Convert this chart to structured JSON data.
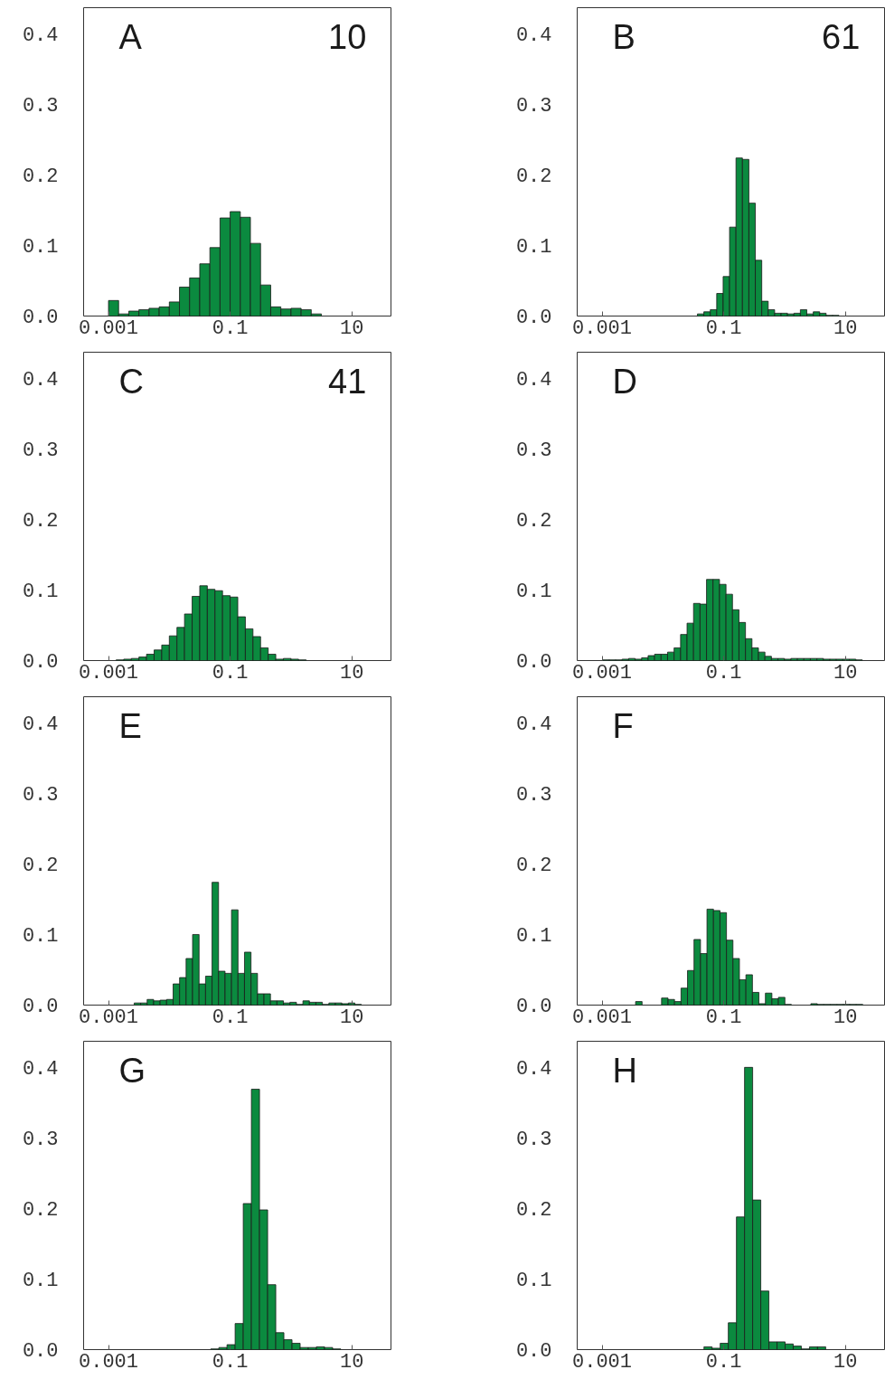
{
  "chart_data": [
    {
      "type": "histogram",
      "annotations": [
        "A",
        "10"
      ],
      "color": "#0b8a3f",
      "log": "x",
      "grid": false,
      "xlim": [
        0.00039,
        44
      ],
      "xticks": [
        0.001,
        0.1,
        10
      ],
      "ylim": [
        0,
        0.437
      ],
      "yticks": [
        {
          "value": 0,
          "label": "0.0"
        },
        {
          "value": 0.1,
          "label": "0.1"
        },
        {
          "value": 0.2,
          "label": "0.2"
        },
        {
          "value": 0.3,
          "label": "0.3"
        },
        {
          "value": 0.4,
          "label": "0.4"
        }
      ],
      "bins": [
        0.001,
        0.001468,
        0.002154,
        0.003162,
        0.004642,
        0.006813,
        0.01,
        0.01468,
        0.02154,
        0.03162,
        0.04642,
        0.06813,
        0.1,
        0.1468,
        0.2154,
        0.3162,
        0.4642,
        0.6813,
        1.0,
        1.468,
        2.154,
        3.162
      ],
      "values": [
        0.022,
        0.003,
        0.007,
        0.009,
        0.011,
        0.013,
        0.02,
        0.041,
        0.054,
        0.074,
        0.097,
        0.139,
        0.148,
        0.14,
        0.103,
        0.044,
        0.013,
        0.01,
        0.011,
        0.009,
        0.003
      ]
    },
    {
      "type": "histogram",
      "annotations": [
        "B",
        "61"
      ],
      "color": "#0b8a3f",
      "log": "x",
      "grid": false,
      "xlim": [
        0.00039,
        44
      ],
      "xticks": [
        0.001,
        0.1,
        10
      ],
      "ylim": [
        0,
        0.437
      ],
      "yticks": [
        {
          "value": 0,
          "label": "0.0"
        },
        {
          "value": 0.1,
          "label": "0.1"
        },
        {
          "value": 0.2,
          "label": "0.2"
        },
        {
          "value": 0.3,
          "label": "0.3"
        },
        {
          "value": 0.4,
          "label": "0.4"
        }
      ],
      "bins": [
        0.0369,
        0.04708,
        0.06006,
        0.07663,
        0.09777,
        0.1247,
        0.1591,
        0.203,
        0.2591,
        0.3305,
        0.4217,
        0.538,
        0.6864,
        0.8758,
        1.117,
        1.426,
        1.819,
        2.321,
        2.961,
        3.777,
        4.819,
        6.149,
        7.845
      ],
      "values": [
        0.003,
        0.006,
        0.009,
        0.032,
        0.056,
        0.126,
        0.224,
        0.222,
        0.16,
        0.079,
        0.021,
        0.009,
        0.004,
        0.004,
        0.003,
        0.004,
        0.009,
        0.003,
        0.006,
        0.004,
        0.001,
        0.001
      ]
    },
    {
      "type": "histogram",
      "annotations": [
        "C",
        "41"
      ],
      "color": "#0b8a3f",
      "log": "x",
      "grid": false,
      "xlim": [
        0.00039,
        44
      ],
      "xticks": [
        0.001,
        0.1,
        10
      ],
      "ylim": [
        0,
        0.437
      ],
      "yticks": [
        {
          "value": 0,
          "label": "0.0"
        },
        {
          "value": 0.1,
          "label": "0.1"
        },
        {
          "value": 0.2,
          "label": "0.2"
        },
        {
          "value": 0.3,
          "label": "0.3"
        },
        {
          "value": 0.4,
          "label": "0.4"
        }
      ],
      "bins": [
        0.001334,
        0.001778,
        0.002371,
        0.003162,
        0.004217,
        0.005623,
        0.007499,
        0.01,
        0.01334,
        0.01778,
        0.02371,
        0.03162,
        0.04217,
        0.05623,
        0.07499,
        0.1,
        0.1334,
        0.1778,
        0.2371,
        0.3162,
        0.4217,
        0.5623,
        0.7499,
        1.0,
        1.334,
        1.778
      ],
      "values": [
        0.001,
        0.002,
        0.003,
        0.005,
        0.009,
        0.015,
        0.022,
        0.035,
        0.047,
        0.066,
        0.091,
        0.106,
        0.101,
        0.099,
        0.092,
        0.09,
        0.062,
        0.045,
        0.034,
        0.018,
        0.009,
        0.002,
        0.003,
        0.002,
        0.001
      ]
    },
    {
      "type": "histogram",
      "annotations": [
        "D"
      ],
      "color": "#0b8a3f",
      "log": "x",
      "grid": false,
      "xlim": [
        0.00039,
        44
      ],
      "xticks": [
        0.001,
        0.1,
        10
      ],
      "ylim": [
        0,
        0.437
      ],
      "yticks": [
        {
          "value": 0,
          "label": "0.0"
        },
        {
          "value": 0.1,
          "label": "0.1"
        },
        {
          "value": 0.2,
          "label": "0.2"
        },
        {
          "value": 0.3,
          "label": "0.3"
        },
        {
          "value": 0.4,
          "label": "0.4"
        }
      ],
      "bins": [
        0.001023,
        0.001308,
        0.001673,
        0.002138,
        0.002734,
        0.003495,
        0.004469,
        0.005713,
        0.007305,
        0.009339,
        0.01194,
        0.01527,
        0.01952,
        0.02495,
        0.0319,
        0.04078,
        0.05214,
        0.06667,
        0.08523,
        0.109,
        0.1393,
        0.1781,
        0.2277,
        0.2911,
        0.3722,
        0.4759,
        0.6084,
        0.7779,
        0.9945,
        1.271,
        1.626,
        2.078,
        2.657,
        3.397,
        4.343,
        5.553,
        7.099,
        9.076,
        11.6,
        14.84,
        18.97
      ],
      "values": [
        0.001,
        0.001,
        0.001,
        0.002,
        0.003,
        0.002,
        0.004,
        0.007,
        0.009,
        0.009,
        0.012,
        0.018,
        0.037,
        0.053,
        0.081,
        0.08,
        0.115,
        0.115,
        0.108,
        0.094,
        0.072,
        0.054,
        0.031,
        0.018,
        0.012,
        0.006,
        0.003,
        0.003,
        0.002,
        0.003,
        0.003,
        0.003,
        0.003,
        0.003,
        0.002,
        0.002,
        0.002,
        0.002,
        0.002,
        0.001
      ]
    },
    {
      "type": "histogram",
      "annotations": [
        "E"
      ],
      "color": "#0b8a3f",
      "log": "x",
      "grid": false,
      "xlim": [
        0.00039,
        44
      ],
      "xticks": [
        0.001,
        0.1,
        10
      ],
      "ylim": [
        0,
        0.437
      ],
      "yticks": [
        {
          "value": 0,
          "label": "0.0"
        },
        {
          "value": 0.1,
          "label": "0.1"
        },
        {
          "value": 0.2,
          "label": "0.2"
        },
        {
          "value": 0.3,
          "label": "0.3"
        },
        {
          "value": 0.4,
          "label": "0.4"
        }
      ],
      "bins": [
        0.002642,
        0.003378,
        0.004319,
        0.005522,
        0.00706,
        0.009026,
        0.01154,
        0.01475,
        0.01886,
        0.02412,
        0.03083,
        0.03942,
        0.0504,
        0.06443,
        0.08238,
        0.1053,
        0.1346,
        0.1721,
        0.2201,
        0.2814,
        0.3597,
        0.4599,
        0.588,
        0.7518,
        0.9612,
        1.229,
        1.571,
        2.009,
        2.568,
        3.283,
        4.198,
        5.367,
        6.861,
        8.772,
        11.22,
        14.34
      ],
      "values": [
        0.003,
        0.003,
        0.008,
        0.006,
        0.007,
        0.008,
        0.03,
        0.039,
        0.066,
        0.1,
        0.03,
        0.041,
        0.174,
        0.048,
        0.045,
        0.135,
        0.045,
        0.075,
        0.045,
        0.016,
        0.016,
        0.006,
        0.006,
        0.003,
        0.004,
        0.001,
        0.006,
        0.004,
        0.004,
        0.001,
        0.003,
        0.003,
        0.002,
        0.003,
        0.001
      ]
    },
    {
      "type": "histogram",
      "annotations": [
        "F"
      ],
      "color": "#0b8a3f",
      "log": "x",
      "grid": false,
      "xlim": [
        0.00039,
        44
      ],
      "xticks": [
        0.001,
        0.1,
        10
      ],
      "ylim": [
        0,
        0.437
      ],
      "yticks": [
        {
          "value": 0,
          "label": "0.0"
        },
        {
          "value": 0.1,
          "label": "0.1"
        },
        {
          "value": 0.2,
          "label": "0.2"
        },
        {
          "value": 0.3,
          "label": "0.3"
        },
        {
          "value": 0.4,
          "label": "0.4"
        }
      ],
      "bins": [
        0.003556,
        0.004547,
        0.005813,
        0.007432,
        0.009502,
        0.01215,
        0.01553,
        0.01986,
        0.02539,
        0.03246,
        0.0415,
        0.05305,
        0.06783,
        0.08672,
        0.1109,
        0.1417,
        0.1812,
        0.2317,
        0.2962,
        0.3787,
        0.4842,
        0.619,
        0.7914,
        1.012,
        1.294,
        1.654,
        2.114,
        2.703,
        3.456,
        4.419,
        5.649,
        7.223,
        9.234,
        11.81,
        15.09,
        19.3
      ],
      "values": [
        0.005,
        null,
        null,
        null,
        0.01,
        0.008,
        0.005,
        0.024,
        0.049,
        0.093,
        0.073,
        0.136,
        0.134,
        0.131,
        0.092,
        0.066,
        0.036,
        0.043,
        0.018,
        0.002,
        0.017,
        0.009,
        0.011,
        0.001,
        null,
        null,
        null,
        0.002,
        0.001,
        0.001,
        0.001,
        0.001,
        0.001,
        0.001,
        0.001
      ]
    },
    {
      "type": "histogram",
      "annotations": [
        "G"
      ],
      "color": "#0b8a3f",
      "log": "x",
      "grid": false,
      "xlim": [
        0.00039,
        44
      ],
      "xticks": [
        0.001,
        0.1,
        10
      ],
      "ylim": [
        0,
        0.437
      ],
      "yticks": [
        {
          "value": 0,
          "label": "0.0"
        },
        {
          "value": 0.1,
          "label": "0.1"
        },
        {
          "value": 0.2,
          "label": "0.2"
        },
        {
          "value": 0.3,
          "label": "0.3"
        },
        {
          "value": 0.4,
          "label": "0.4"
        }
      ],
      "bins": [
        0.04797,
        0.06525,
        0.08876,
        0.1207,
        0.1642,
        0.2234,
        0.3038,
        0.4132,
        0.5621,
        0.7645,
        1.04,
        1.414,
        1.924,
        2.617,
        3.56,
        4.842,
        6.586
      ],
      "values": [
        0.001,
        0.003,
        0.007,
        0.037,
        0.207,
        0.369,
        0.198,
        0.092,
        0.024,
        0.014,
        0.009,
        0.003,
        0.003,
        0.004,
        0.003,
        0.001
      ]
    },
    {
      "type": "histogram",
      "annotations": [
        "H"
      ],
      "color": "#0b8a3f",
      "log": "x",
      "grid": false,
      "xlim": [
        0.00039,
        44
      ],
      "xticks": [
        0.001,
        0.1,
        10
      ],
      "ylim": [
        0,
        0.437
      ],
      "yticks": [
        {
          "value": 0,
          "label": "0.0"
        },
        {
          "value": 0.1,
          "label": "0.1"
        },
        {
          "value": 0.2,
          "label": "0.2"
        },
        {
          "value": 0.3,
          "label": "0.3"
        },
        {
          "value": 0.4,
          "label": "0.4"
        }
      ],
      "bins": [
        0.04732,
        0.06433,
        0.08746,
        0.1189,
        0.1617,
        0.2198,
        0.2988,
        0.4063,
        0.5523,
        0.7509,
        1.021,
        1.388,
        1.887,
        2.566,
        3.488,
        4.742
      ],
      "values": [
        0.004,
        0.002,
        0.009,
        0.038,
        0.188,
        0.4,
        0.212,
        0.083,
        0.011,
        0.011,
        0.008,
        0.005,
        0.001,
        0.004,
        0.004
      ]
    }
  ]
}
